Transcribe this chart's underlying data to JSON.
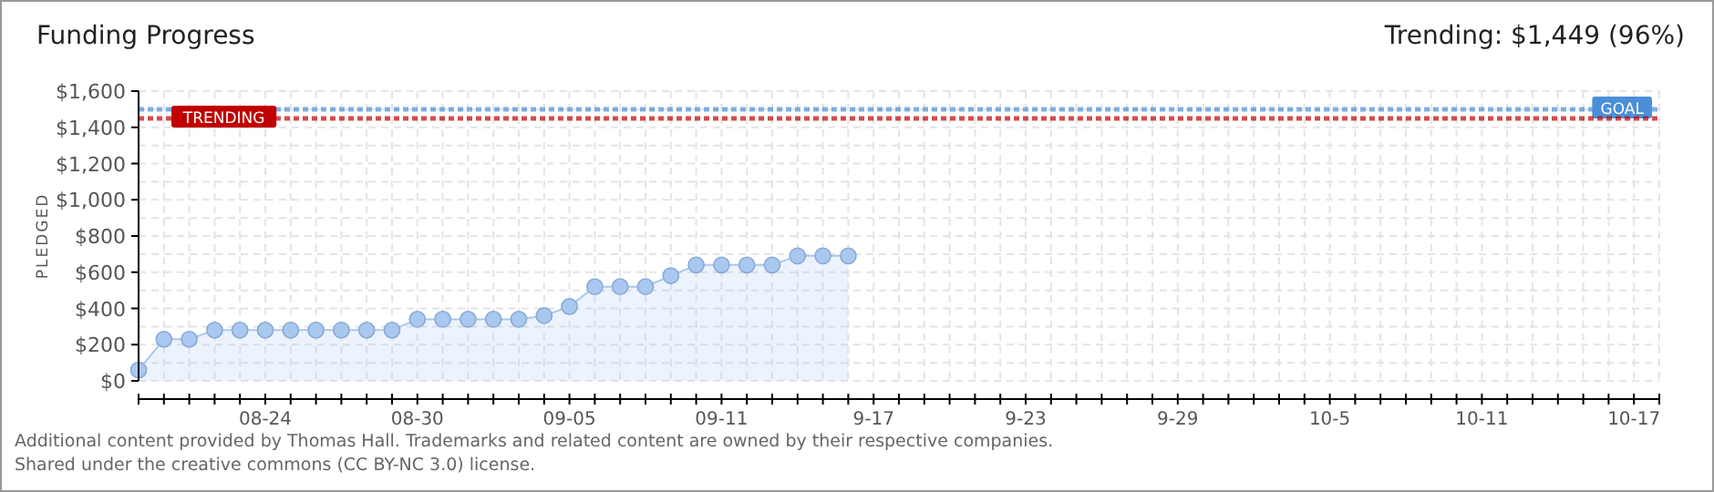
{
  "chart_data": {
    "type": "area",
    "title": "Funding Progress",
    "ylabel": "PLEDGED",
    "annotations": [
      "Trending: $1,449 (96%)",
      "Additional content provided by Thomas Hall. Trademarks and related content are owned by their respective companies.",
      "Shared under the creative commons (CC BY-NC 3.0) license."
    ],
    "x": [
      "--08-19",
      "--08-20",
      "--08-21",
      "--08-22",
      "--08-23",
      "--08-24",
      "--08-25",
      "--08-26",
      "--08-27",
      "--08-28",
      "--08-29",
      "--08-30",
      "--08-31",
      "--09-01",
      "--09-02",
      "--09-03",
      "--09-04",
      "--09-05",
      "--09-06",
      "--09-07",
      "--09-08",
      "--09-09",
      "--09-10",
      "--09-11",
      "--09-12",
      "--09-13",
      "--09-14",
      "--09-15",
      "--09-16"
    ],
    "series": [
      {
        "color": "#a8c8f0",
        "values": [
          60,
          230,
          230,
          280,
          280,
          280,
          280,
          280,
          280,
          280,
          280,
          340,
          340,
          340,
          340,
          340,
          360,
          410,
          520,
          520,
          520,
          580,
          640,
          640,
          640,
          640,
          690,
          690,
          690
        ]
      }
    ],
    "xlim": [
      "--08-19",
      "--10-18"
    ],
    "xticks": [
      {
        "value": "--08-24",
        "label": "08-24"
      },
      {
        "value": "--08-30",
        "label": "08-30"
      },
      {
        "value": "--09-05",
        "label": "09-05"
      },
      {
        "value": "--09-11",
        "label": "09-11"
      },
      {
        "value": "--09-17",
        "label": "9-17"
      },
      {
        "value": "--09-23",
        "label": "9-23"
      },
      {
        "value": "--09-29",
        "label": "9-29"
      },
      {
        "value": "--10-05",
        "label": "10-5"
      },
      {
        "value": "--10-11",
        "label": "10-11"
      },
      {
        "value": "--10-17",
        "label": "10-17"
      }
    ],
    "ylim": [
      0,
      1600
    ],
    "yticks": [
      {
        "value": 0,
        "label": "$0"
      },
      {
        "value": 200,
        "label": "$200"
      },
      {
        "value": 400,
        "label": "$400"
      },
      {
        "value": 600,
        "label": "$600"
      },
      {
        "value": 800,
        "label": "$800"
      },
      {
        "value": 1000,
        "label": "$1,000"
      },
      {
        "value": 1200,
        "label": "$1,200"
      },
      {
        "value": 1400,
        "label": "$1,400"
      },
      {
        "value": 1600,
        "label": "$1,600"
      }
    ],
    "ref_lines": [
      {
        "axis": "y",
        "value": 1500,
        "label": "GOAL",
        "color": "#4a8fd8",
        "line_style": "dotted"
      },
      {
        "axis": "y",
        "value": 1449,
        "label": "TRENDING",
        "color": "#c00000",
        "line_style": "dotted"
      }
    ],
    "grid": true,
    "marker": "circle"
  }
}
